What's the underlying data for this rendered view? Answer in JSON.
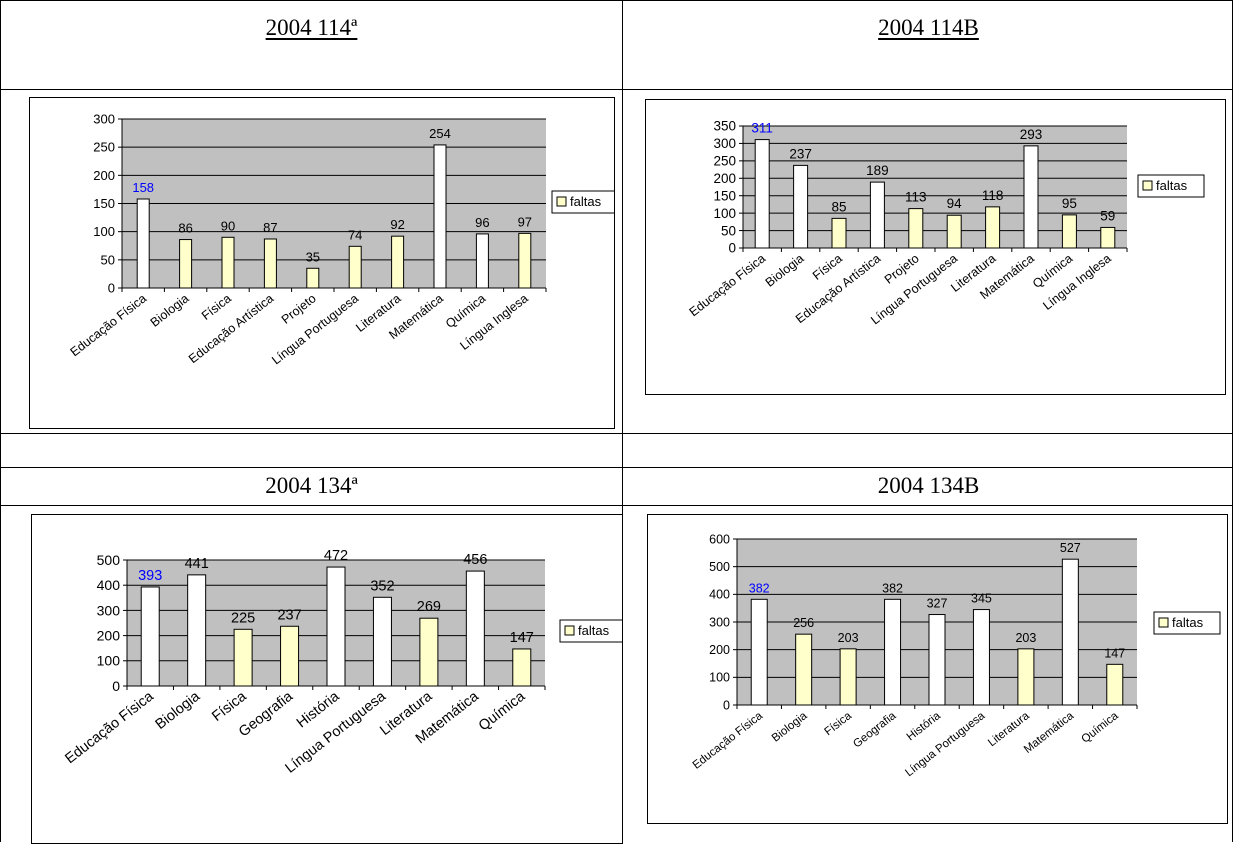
{
  "headings": [
    "2004 114ª",
    "2004 114B",
    "2004 134ª",
    "2004 134B"
  ],
  "legend_label": "faltas",
  "colors": {
    "plot_bg": "#c0c0c0",
    "bar_highlight": "#ffffcc",
    "bar_plain": "#ffffff",
    "outline": "#000000",
    "blue_label": "#0000ff"
  },
  "chart_data": [
    {
      "type": "bar",
      "title": "2004 114ª",
      "categories": [
        "Educação Física",
        "Biologia",
        "Física",
        "Educação Artística",
        "Projeto",
        "Língua Portuguesa",
        "Literatura",
        "Matemática",
        "Química",
        "Língua Inglesa"
      ],
      "series": [
        {
          "name": "faltas",
          "values": [
            158,
            86,
            90,
            87,
            35,
            74,
            92,
            254,
            96,
            97
          ]
        }
      ],
      "highlighted": [
        false,
        true,
        true,
        true,
        true,
        true,
        true,
        false,
        false,
        true
      ],
      "blue_labels": [
        true,
        false,
        false,
        false,
        false,
        false,
        false,
        false,
        false,
        false
      ],
      "ylim": [
        0,
        300
      ],
      "yticks": [
        0,
        50,
        100,
        150,
        200,
        250,
        300
      ],
      "legend": "right"
    },
    {
      "type": "bar",
      "title": "2004 114B",
      "categories": [
        "Educação Física",
        "Biologia",
        "Física",
        "Educação Artística",
        "Projeto",
        "Língua Portuguesa",
        "Literatura",
        "Matemática",
        "Química",
        "Língua Inglesa"
      ],
      "series": [
        {
          "name": "faltas",
          "values": [
            311,
            237,
            85,
            189,
            113,
            94,
            118,
            293,
            95,
            59
          ]
        }
      ],
      "highlighted": [
        false,
        false,
        true,
        false,
        true,
        true,
        true,
        false,
        true,
        true
      ],
      "blue_labels": [
        true,
        false,
        false,
        false,
        false,
        false,
        false,
        false,
        false,
        false
      ],
      "ylim": [
        0,
        350
      ],
      "yticks": [
        0,
        50,
        100,
        150,
        200,
        250,
        300,
        350
      ],
      "legend": "right"
    },
    {
      "type": "bar",
      "title": "2004 134ª",
      "categories": [
        "Educação Física",
        "Biologia",
        "Física",
        "Geografia",
        "História",
        "Língua Portuguesa",
        "Literatura",
        "Matemática",
        "Química"
      ],
      "series": [
        {
          "name": "faltas",
          "values": [
            393,
            441,
            225,
            237,
            472,
            352,
            269,
            456,
            147
          ]
        }
      ],
      "highlighted": [
        false,
        false,
        true,
        true,
        false,
        false,
        true,
        false,
        true
      ],
      "blue_labels": [
        true,
        false,
        false,
        false,
        false,
        false,
        false,
        false,
        false
      ],
      "ylim": [
        0,
        500
      ],
      "yticks": [
        0,
        100,
        200,
        300,
        400,
        500
      ],
      "legend": "right"
    },
    {
      "type": "bar",
      "title": "2004 134B",
      "categories": [
        "Educação Física",
        "Biologia",
        "Física",
        "Geografia",
        "História",
        "Língua Portuguesa",
        "Literatura",
        "Matemática",
        "Química"
      ],
      "series": [
        {
          "name": "faltas",
          "values": [
            382,
            256,
            203,
            382,
            327,
            345,
            203,
            527,
            147
          ]
        }
      ],
      "highlighted": [
        false,
        true,
        true,
        false,
        false,
        false,
        true,
        false,
        true
      ],
      "blue_labels": [
        true,
        false,
        false,
        false,
        false,
        false,
        false,
        false,
        false
      ],
      "ylim": [
        0,
        600
      ],
      "yticks": [
        0,
        100,
        200,
        300,
        400,
        500,
        600
      ],
      "legend": "right"
    }
  ]
}
